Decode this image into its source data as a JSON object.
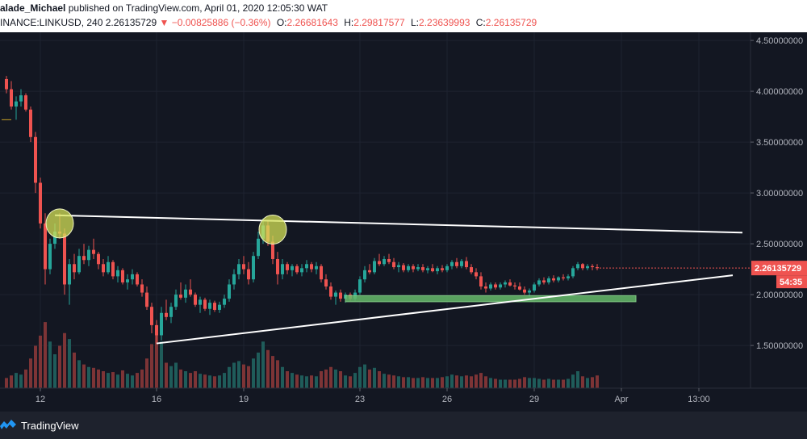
{
  "header": {
    "author": "alade_Michael",
    "published": "published on TradingView.com, April 01, 2020 12:05:30 WAT",
    "symbol": "INANCE:LINKUSD, 240",
    "last": "2.26135729",
    "change_arrow": "▼",
    "change": "−0.00825886 (−0.36%)",
    "o_label": "O:",
    "o_value": "2.26681643",
    "h_label": "H:",
    "h_value": "2.29817577",
    "l_label": "L:",
    "l_value": "2.23639993",
    "c_label": "C:",
    "c_value": "2.26135729"
  },
  "footer": {
    "brand": "TradingView",
    "logo_icon": "tradingview-logo-icon"
  },
  "colors": {
    "background": "#131722",
    "up": "#26a69a",
    "down": "#ef5350",
    "volume_up": "#1f5c5a",
    "volume_down": "#7d3436",
    "trendline": "#ffffff",
    "highlight": "#d4e157",
    "support_zone": "#66bb6a"
  },
  "chart_data": {
    "type": "candlestick",
    "title": "",
    "ylim": [
      1.08,
      4.58
    ],
    "y_ticks": [
      {
        "value": 1.5,
        "label": "1.50000000"
      },
      {
        "value": 2.0,
        "label": "2.00000000"
      },
      {
        "value": 2.5,
        "label": "2.50000000"
      },
      {
        "value": 3.0,
        "label": "3.00000000"
      },
      {
        "value": 3.5,
        "label": "3.50000000"
      },
      {
        "value": 4.0,
        "label": "4.00000000"
      },
      {
        "value": 4.5,
        "label": "4.50000000"
      }
    ],
    "x_ticks": [
      {
        "bar": 7,
        "label": "12"
      },
      {
        "bar": 31,
        "label": "16"
      },
      {
        "bar": 49,
        "label": "19"
      },
      {
        "bar": 73,
        "label": "23"
      },
      {
        "bar": 91,
        "label": "26"
      },
      {
        "bar": 109,
        "label": "29"
      },
      {
        "bar": 127,
        "label": "Apr"
      },
      {
        "bar": 143,
        "label": "13:00"
      }
    ],
    "candles": [
      {
        "o": 4.12,
        "h": 4.15,
        "l": 3.98,
        "c": 4.02,
        "v": 0.12
      },
      {
        "o": 4.02,
        "h": 4.1,
        "l": 3.82,
        "c": 3.85,
        "v": 0.15
      },
      {
        "o": 3.85,
        "h": 3.95,
        "l": 3.72,
        "c": 3.9,
        "v": 0.18
      },
      {
        "o": 3.9,
        "h": 4.02,
        "l": 3.85,
        "c": 3.96,
        "v": 0.16
      },
      {
        "o": 3.96,
        "h": 3.98,
        "l": 3.8,
        "c": 3.82,
        "v": 0.22
      },
      {
        "o": 3.82,
        "h": 3.85,
        "l": 3.5,
        "c": 3.55,
        "v": 0.35
      },
      {
        "o": 3.55,
        "h": 3.6,
        "l": 3.0,
        "c": 3.1,
        "v": 0.5
      },
      {
        "o": 3.1,
        "h": 3.15,
        "l": 2.65,
        "c": 2.7,
        "v": 0.62
      },
      {
        "o": 2.7,
        "h": 2.8,
        "l": 2.1,
        "c": 2.25,
        "v": 0.78
      },
      {
        "o": 2.25,
        "h": 2.55,
        "l": 2.2,
        "c": 2.5,
        "v": 0.55
      },
      {
        "o": 2.5,
        "h": 2.7,
        "l": 2.45,
        "c": 2.62,
        "v": 0.4
      },
      {
        "o": 2.62,
        "h": 2.8,
        "l": 2.55,
        "c": 2.6,
        "v": 0.5
      },
      {
        "o": 2.6,
        "h": 2.65,
        "l": 2.0,
        "c": 2.1,
        "v": 0.65
      },
      {
        "o": 2.1,
        "h": 2.35,
        "l": 1.9,
        "c": 2.3,
        "v": 0.58
      },
      {
        "o": 2.3,
        "h": 2.4,
        "l": 2.15,
        "c": 2.22,
        "v": 0.42
      },
      {
        "o": 2.22,
        "h": 2.45,
        "l": 2.2,
        "c": 2.38,
        "v": 0.33
      },
      {
        "o": 2.38,
        "h": 2.5,
        "l": 2.3,
        "c": 2.34,
        "v": 0.28
      },
      {
        "o": 2.34,
        "h": 2.48,
        "l": 2.28,
        "c": 2.44,
        "v": 0.25
      },
      {
        "o": 2.44,
        "h": 2.55,
        "l": 2.35,
        "c": 2.4,
        "v": 0.24
      },
      {
        "o": 2.4,
        "h": 2.42,
        "l": 2.25,
        "c": 2.3,
        "v": 0.22
      },
      {
        "o": 2.3,
        "h": 2.35,
        "l": 2.18,
        "c": 2.22,
        "v": 0.2
      },
      {
        "o": 2.22,
        "h": 2.38,
        "l": 2.2,
        "c": 2.32,
        "v": 0.18
      },
      {
        "o": 2.32,
        "h": 2.34,
        "l": 2.15,
        "c": 2.18,
        "v": 0.19
      },
      {
        "o": 2.18,
        "h": 2.28,
        "l": 2.12,
        "c": 2.24,
        "v": 0.16
      },
      {
        "o": 2.24,
        "h": 2.26,
        "l": 2.1,
        "c": 2.12,
        "v": 0.21
      },
      {
        "o": 2.12,
        "h": 2.2,
        "l": 2.05,
        "c": 2.15,
        "v": 0.17
      },
      {
        "o": 2.15,
        "h": 2.25,
        "l": 2.1,
        "c": 2.2,
        "v": 0.15
      },
      {
        "o": 2.2,
        "h": 2.22,
        "l": 2.08,
        "c": 2.1,
        "v": 0.18
      },
      {
        "o": 2.1,
        "h": 2.15,
        "l": 1.98,
        "c": 2.02,
        "v": 0.22
      },
      {
        "o": 2.02,
        "h": 2.08,
        "l": 1.85,
        "c": 1.88,
        "v": 0.35
      },
      {
        "o": 1.88,
        "h": 1.92,
        "l": 1.62,
        "c": 1.7,
        "v": 0.52
      },
      {
        "o": 1.7,
        "h": 1.75,
        "l": 1.52,
        "c": 1.6,
        "v": 0.7
      },
      {
        "o": 1.6,
        "h": 1.88,
        "l": 1.55,
        "c": 1.82,
        "v": 0.55
      },
      {
        "o": 1.82,
        "h": 1.95,
        "l": 1.75,
        "c": 1.78,
        "v": 0.3
      },
      {
        "o": 1.78,
        "h": 1.92,
        "l": 1.72,
        "c": 1.88,
        "v": 0.26
      },
      {
        "o": 1.88,
        "h": 2.05,
        "l": 1.85,
        "c": 2.0,
        "v": 0.3
      },
      {
        "o": 2.0,
        "h": 2.12,
        "l": 1.95,
        "c": 1.97,
        "v": 0.22
      },
      {
        "o": 1.97,
        "h": 2.1,
        "l": 1.92,
        "c": 2.05,
        "v": 0.2
      },
      {
        "o": 2.05,
        "h": 2.15,
        "l": 1.98,
        "c": 2.0,
        "v": 0.18
      },
      {
        "o": 2.0,
        "h": 2.02,
        "l": 1.88,
        "c": 1.9,
        "v": 0.2
      },
      {
        "o": 1.9,
        "h": 1.98,
        "l": 1.82,
        "c": 1.95,
        "v": 0.17
      },
      {
        "o": 1.95,
        "h": 1.97,
        "l": 1.84,
        "c": 1.86,
        "v": 0.16
      },
      {
        "o": 1.86,
        "h": 1.95,
        "l": 1.8,
        "c": 1.92,
        "v": 0.15
      },
      {
        "o": 1.92,
        "h": 1.94,
        "l": 1.83,
        "c": 1.85,
        "v": 0.14
      },
      {
        "o": 1.85,
        "h": 1.93,
        "l": 1.82,
        "c": 1.9,
        "v": 0.15
      },
      {
        "o": 1.9,
        "h": 2.0,
        "l": 1.87,
        "c": 1.96,
        "v": 0.18
      },
      {
        "o": 1.96,
        "h": 2.15,
        "l": 1.93,
        "c": 2.1,
        "v": 0.25
      },
      {
        "o": 2.1,
        "h": 2.25,
        "l": 2.05,
        "c": 2.2,
        "v": 0.3
      },
      {
        "o": 2.2,
        "h": 2.35,
        "l": 2.15,
        "c": 2.3,
        "v": 0.32
      },
      {
        "o": 2.3,
        "h": 2.38,
        "l": 2.2,
        "c": 2.25,
        "v": 0.28
      },
      {
        "o": 2.25,
        "h": 2.32,
        "l": 2.1,
        "c": 2.15,
        "v": 0.26
      },
      {
        "o": 2.15,
        "h": 2.42,
        "l": 2.12,
        "c": 2.38,
        "v": 0.35
      },
      {
        "o": 2.38,
        "h": 2.62,
        "l": 2.35,
        "c": 2.55,
        "v": 0.42
      },
      {
        "o": 2.55,
        "h": 2.75,
        "l": 2.5,
        "c": 2.68,
        "v": 0.55
      },
      {
        "o": 2.68,
        "h": 2.72,
        "l": 2.48,
        "c": 2.52,
        "v": 0.45
      },
      {
        "o": 2.52,
        "h": 2.58,
        "l": 2.3,
        "c": 2.35,
        "v": 0.38
      },
      {
        "o": 2.35,
        "h": 2.42,
        "l": 2.1,
        "c": 2.2,
        "v": 0.33
      },
      {
        "o": 2.2,
        "h": 2.35,
        "l": 2.15,
        "c": 2.3,
        "v": 0.25
      },
      {
        "o": 2.3,
        "h": 2.32,
        "l": 2.2,
        "c": 2.24,
        "v": 0.2
      },
      {
        "o": 2.24,
        "h": 2.3,
        "l": 2.18,
        "c": 2.28,
        "v": 0.18
      },
      {
        "o": 2.28,
        "h": 2.3,
        "l": 2.2,
        "c": 2.22,
        "v": 0.16
      },
      {
        "o": 2.22,
        "h": 2.3,
        "l": 2.18,
        "c": 2.26,
        "v": 0.15
      },
      {
        "o": 2.26,
        "h": 2.34,
        "l": 2.22,
        "c": 2.3,
        "v": 0.14
      },
      {
        "o": 2.3,
        "h": 2.32,
        "l": 2.22,
        "c": 2.25,
        "v": 0.15
      },
      {
        "o": 2.25,
        "h": 2.32,
        "l": 2.2,
        "c": 2.28,
        "v": 0.14
      },
      {
        "o": 2.28,
        "h": 2.3,
        "l": 2.12,
        "c": 2.15,
        "v": 0.2
      },
      {
        "o": 2.15,
        "h": 2.2,
        "l": 2.05,
        "c": 2.08,
        "v": 0.22
      },
      {
        "o": 2.08,
        "h": 2.12,
        "l": 1.95,
        "c": 1.98,
        "v": 0.25
      },
      {
        "o": 1.98,
        "h": 2.04,
        "l": 1.9,
        "c": 2.02,
        "v": 0.22
      },
      {
        "o": 2.02,
        "h": 2.05,
        "l": 1.93,
        "c": 1.96,
        "v": 0.2
      },
      {
        "o": 1.96,
        "h": 2.02,
        "l": 1.92,
        "c": 2.0,
        "v": 0.15
      },
      {
        "o": 2.0,
        "h": 2.02,
        "l": 1.94,
        "c": 1.96,
        "v": 0.14
      },
      {
        "o": 1.96,
        "h": 2.05,
        "l": 1.94,
        "c": 2.02,
        "v": 0.18
      },
      {
        "o": 2.02,
        "h": 2.18,
        "l": 2.0,
        "c": 2.15,
        "v": 0.25
      },
      {
        "o": 2.15,
        "h": 2.28,
        "l": 2.12,
        "c": 2.24,
        "v": 0.28
      },
      {
        "o": 2.24,
        "h": 2.3,
        "l": 2.2,
        "c": 2.22,
        "v": 0.22
      },
      {
        "o": 2.22,
        "h": 2.36,
        "l": 2.2,
        "c": 2.33,
        "v": 0.24
      },
      {
        "o": 2.33,
        "h": 2.4,
        "l": 2.28,
        "c": 2.3,
        "v": 0.2
      },
      {
        "o": 2.3,
        "h": 2.38,
        "l": 2.28,
        "c": 2.35,
        "v": 0.17
      },
      {
        "o": 2.35,
        "h": 2.4,
        "l": 2.3,
        "c": 2.32,
        "v": 0.16
      },
      {
        "o": 2.32,
        "h": 2.36,
        "l": 2.25,
        "c": 2.27,
        "v": 0.15
      },
      {
        "o": 2.27,
        "h": 2.32,
        "l": 2.22,
        "c": 2.29,
        "v": 0.14
      },
      {
        "o": 2.29,
        "h": 2.31,
        "l": 2.22,
        "c": 2.24,
        "v": 0.13
      },
      {
        "o": 2.24,
        "h": 2.3,
        "l": 2.22,
        "c": 2.28,
        "v": 0.13
      },
      {
        "o": 2.28,
        "h": 2.3,
        "l": 2.22,
        "c": 2.25,
        "v": 0.12
      },
      {
        "o": 2.25,
        "h": 2.3,
        "l": 2.23,
        "c": 2.27,
        "v": 0.12
      },
      {
        "o": 2.27,
        "h": 2.3,
        "l": 2.22,
        "c": 2.24,
        "v": 0.13
      },
      {
        "o": 2.24,
        "h": 2.28,
        "l": 2.21,
        "c": 2.26,
        "v": 0.12
      },
      {
        "o": 2.26,
        "h": 2.3,
        "l": 2.22,
        "c": 2.23,
        "v": 0.12
      },
      {
        "o": 2.23,
        "h": 2.28,
        "l": 2.2,
        "c": 2.26,
        "v": 0.12
      },
      {
        "o": 2.26,
        "h": 2.29,
        "l": 2.22,
        "c": 2.24,
        "v": 0.13
      },
      {
        "o": 2.24,
        "h": 2.3,
        "l": 2.22,
        "c": 2.28,
        "v": 0.14
      },
      {
        "o": 2.28,
        "h": 2.34,
        "l": 2.25,
        "c": 2.32,
        "v": 0.16
      },
      {
        "o": 2.32,
        "h": 2.36,
        "l": 2.26,
        "c": 2.28,
        "v": 0.15
      },
      {
        "o": 2.28,
        "h": 2.35,
        "l": 2.26,
        "c": 2.33,
        "v": 0.14
      },
      {
        "o": 2.33,
        "h": 2.37,
        "l": 2.25,
        "c": 2.27,
        "v": 0.15
      },
      {
        "o": 2.27,
        "h": 2.3,
        "l": 2.2,
        "c": 2.22,
        "v": 0.14
      },
      {
        "o": 2.22,
        "h": 2.26,
        "l": 2.15,
        "c": 2.18,
        "v": 0.16
      },
      {
        "o": 2.18,
        "h": 2.22,
        "l": 2.05,
        "c": 2.08,
        "v": 0.18
      },
      {
        "o": 2.08,
        "h": 2.12,
        "l": 2.02,
        "c": 2.06,
        "v": 0.14
      },
      {
        "o": 2.06,
        "h": 2.12,
        "l": 2.04,
        "c": 2.1,
        "v": 0.12
      },
      {
        "o": 2.1,
        "h": 2.12,
        "l": 2.05,
        "c": 2.07,
        "v": 0.11
      },
      {
        "o": 2.07,
        "h": 2.12,
        "l": 2.05,
        "c": 2.1,
        "v": 0.1
      },
      {
        "o": 2.1,
        "h": 2.14,
        "l": 2.07,
        "c": 2.12,
        "v": 0.1
      },
      {
        "o": 2.12,
        "h": 2.15,
        "l": 2.08,
        "c": 2.09,
        "v": 0.1
      },
      {
        "o": 2.09,
        "h": 2.12,
        "l": 2.05,
        "c": 2.08,
        "v": 0.1
      },
      {
        "o": 2.08,
        "h": 2.12,
        "l": 2.04,
        "c": 2.05,
        "v": 0.11
      },
      {
        "o": 2.05,
        "h": 2.08,
        "l": 2.0,
        "c": 2.02,
        "v": 0.13
      },
      {
        "o": 2.02,
        "h": 2.06,
        "l": 1.98,
        "c": 2.04,
        "v": 0.12
      },
      {
        "o": 2.04,
        "h": 2.12,
        "l": 2.02,
        "c": 2.1,
        "v": 0.12
      },
      {
        "o": 2.1,
        "h": 2.16,
        "l": 2.08,
        "c": 2.14,
        "v": 0.11
      },
      {
        "o": 2.14,
        "h": 2.17,
        "l": 2.1,
        "c": 2.12,
        "v": 0.1
      },
      {
        "o": 2.12,
        "h": 2.18,
        "l": 2.1,
        "c": 2.16,
        "v": 0.11
      },
      {
        "o": 2.16,
        "h": 2.19,
        "l": 2.12,
        "c": 2.14,
        "v": 0.1
      },
      {
        "o": 2.14,
        "h": 2.18,
        "l": 2.12,
        "c": 2.17,
        "v": 0.1
      },
      {
        "o": 2.17,
        "h": 2.2,
        "l": 2.14,
        "c": 2.16,
        "v": 0.1
      },
      {
        "o": 2.16,
        "h": 2.2,
        "l": 2.14,
        "c": 2.18,
        "v": 0.11
      },
      {
        "o": 2.18,
        "h": 2.28,
        "l": 2.16,
        "c": 2.26,
        "v": 0.16
      },
      {
        "o": 2.26,
        "h": 2.32,
        "l": 2.24,
        "c": 2.3,
        "v": 0.2
      },
      {
        "o": 2.3,
        "h": 2.31,
        "l": 2.24,
        "c": 2.26,
        "v": 0.14
      },
      {
        "o": 2.26,
        "h": 2.3,
        "l": 2.24,
        "c": 2.28,
        "v": 0.12
      },
      {
        "o": 2.28,
        "h": 2.3,
        "l": 2.24,
        "c": 2.27,
        "v": 0.13
      },
      {
        "o": 2.27,
        "h": 2.3,
        "l": 2.24,
        "c": 2.26,
        "v": 0.15
      }
    ],
    "annotations": {
      "upper_trendline": {
        "from": {
          "bar": 10,
          "price": 2.78
        },
        "to": {
          "bar": 152,
          "price": 2.61
        }
      },
      "lower_trendline": {
        "from": {
          "bar": 31,
          "price": 1.52
        },
        "to": {
          "bar": 150,
          "price": 2.19
        }
      },
      "support_zone": {
        "bar_start": 70,
        "bar_end": 130,
        "price_low": 1.93,
        "price_high": 1.99
      },
      "highlight_circles": [
        {
          "bar": 11,
          "price": 2.7
        },
        {
          "bar": 55,
          "price": 2.64
        }
      ],
      "partial_line": {
        "bar_start": -1,
        "bar_end": 1,
        "price": 3.72
      }
    },
    "price_tag": {
      "value": 2.26135729,
      "label": "2.26135729"
    },
    "countdown_tag": {
      "label": "54:35"
    }
  }
}
